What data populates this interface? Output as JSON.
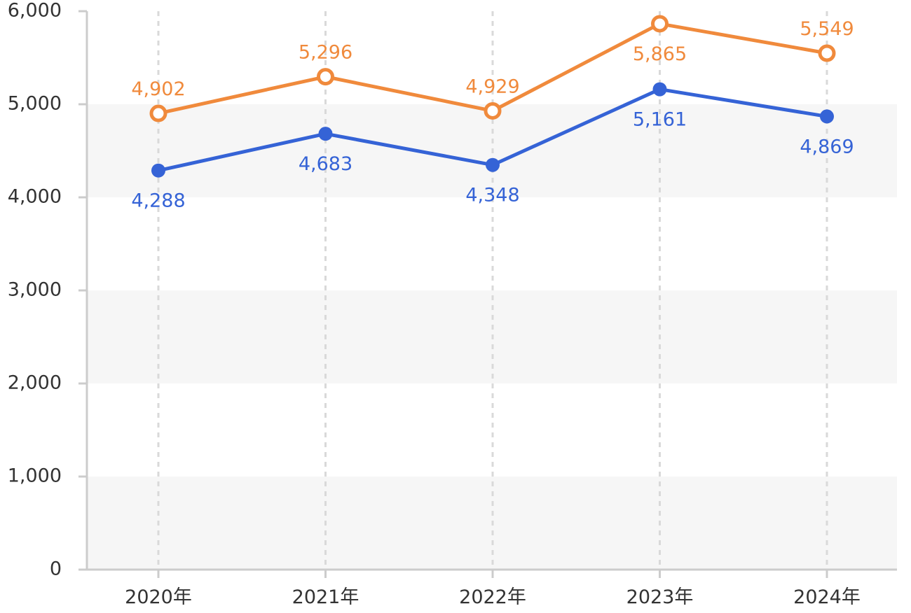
{
  "chart_data": {
    "type": "line",
    "title": "",
    "xlabel": "",
    "ylabel": "",
    "categories": [
      "2020年",
      "2021年",
      "2022年",
      "2023年",
      "2024年"
    ],
    "ylim": [
      0,
      6000
    ],
    "y_ticks": [
      "0",
      "1,000",
      "2,000",
      "3,000",
      "4,000",
      "5,000",
      "6,000"
    ],
    "grid": "alternating horizontal bands, dashed vertical lines",
    "legend": "none",
    "series": [
      {
        "color": "#f08a3c",
        "marker": "hollow-circle",
        "values": [
          4902,
          5296,
          4929,
          5865,
          5549
        ],
        "labels": [
          "4,902",
          "5,296",
          "4,929",
          "5,865",
          "5,549"
        ],
        "label_position": [
          "above",
          "above",
          "above",
          "below",
          "above"
        ]
      },
      {
        "color": "#3563d6",
        "marker": "filled-circle",
        "values": [
          4288,
          4683,
          4348,
          5161,
          4869
        ],
        "labels": [
          "4,288",
          "4,683",
          "4,348",
          "5,161",
          "4,869"
        ],
        "label_position": [
          "below",
          "below",
          "below",
          "below",
          "below"
        ]
      }
    ]
  }
}
